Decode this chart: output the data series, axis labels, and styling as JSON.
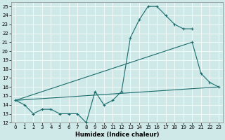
{
  "xlabel": "Humidex (Indice chaleur)",
  "background_color": "#cfe8e8",
  "line_color": "#1a6b6b",
  "xlim": [
    -0.5,
    23.5
  ],
  "ylim": [
    12,
    25.5
  ],
  "xticks": [
    0,
    1,
    2,
    3,
    4,
    5,
    6,
    7,
    8,
    9,
    10,
    11,
    12,
    13,
    14,
    15,
    16,
    17,
    18,
    19,
    20,
    21,
    22,
    23
  ],
  "yticks": [
    12,
    13,
    14,
    15,
    16,
    17,
    18,
    19,
    20,
    21,
    22,
    23,
    24,
    25
  ],
  "curve1_x": [
    0,
    1,
    2,
    3,
    4,
    5,
    6,
    7,
    8,
    9,
    10,
    11,
    12,
    13,
    14,
    15,
    16,
    17,
    18,
    19,
    20
  ],
  "curve1_y": [
    14.5,
    14.0,
    13.0,
    13.5,
    13.5,
    13.0,
    13.0,
    13.0,
    12.0,
    15.5,
    14.0,
    14.5,
    15.5,
    21.5,
    23.5,
    25.0,
    25.0,
    24.0,
    23.0,
    22.5,
    22.5
  ],
  "curve2_x": [
    0,
    20,
    21,
    22,
    23
  ],
  "curve2_y": [
    14.5,
    21.0,
    17.5,
    16.5,
    16.0
  ],
  "curve3_x": [
    0,
    23
  ],
  "curve3_y": [
    14.5,
    16.0
  ],
  "xlabel_fontsize": 6,
  "tick_fontsize": 5
}
